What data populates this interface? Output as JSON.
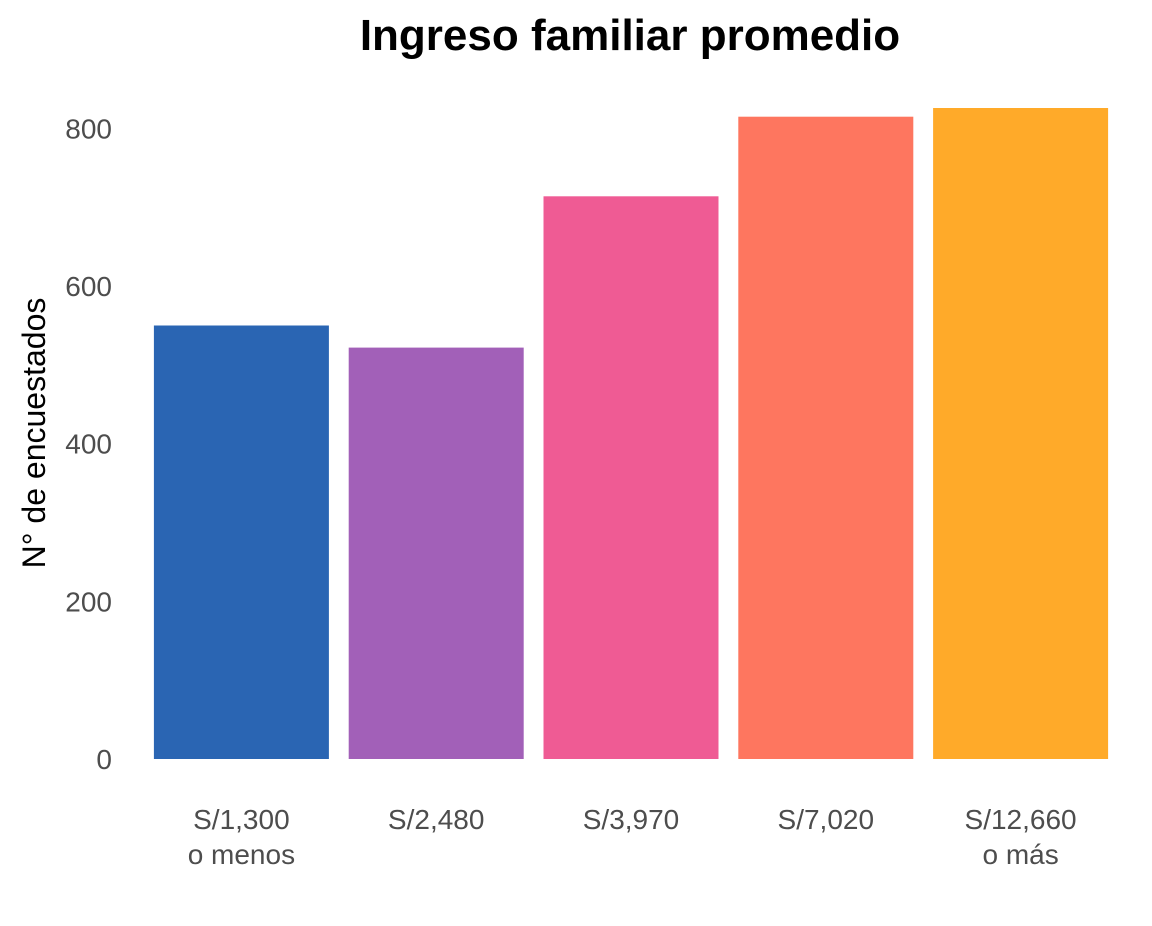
{
  "chart_data": {
    "type": "bar",
    "title": "Ingreso familiar promedio",
    "xlabel": "",
    "ylabel": "N° de encuestados",
    "categories": [
      [
        "S/1,300",
        "o menos"
      ],
      [
        "S/2,480"
      ],
      [
        "S/3,970"
      ],
      [
        "S/7,020"
      ],
      [
        "S/12,660",
        "o más"
      ]
    ],
    "values": [
      550,
      522,
      714,
      815,
      826
    ],
    "colors": [
      "#2a65b3",
      "#a260b8",
      "#ef5b94",
      "#fe765f",
      "#ffaa29"
    ],
    "yticks": [
      0,
      200,
      400,
      600,
      800
    ],
    "ylim": [
      0,
      826
    ],
    "grid": false,
    "legend": "none"
  }
}
